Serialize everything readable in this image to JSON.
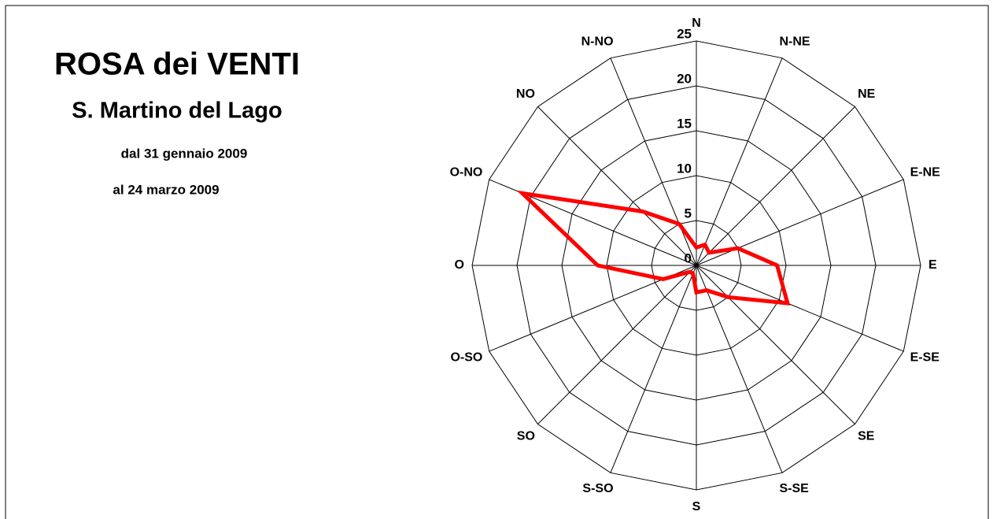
{
  "chart_data": {
    "type": "radar",
    "title": "ROSA dei VENTI",
    "subtitle": "S. Martino del Lago",
    "period_from": "dal 31 gennaio 2009",
    "period_to": "al 24 marzo 2009",
    "categories": [
      "N",
      "N-NE",
      "NE",
      "E-NE",
      "E",
      "E-SE",
      "SE",
      "S-SE",
      "S",
      "S-SO",
      "SO",
      "O-SO",
      "O",
      "O-NO",
      "NO",
      "N-NO"
    ],
    "values": [
      2,
      2.5,
      2,
      5,
      9,
      11,
      5,
      3,
      3,
      1,
      1,
      4,
      11,
      21,
      8.5,
      5
    ],
    "color": "#ff0000",
    "rlim": [
      0,
      25
    ],
    "rticks": [
      0,
      5,
      10,
      15,
      20,
      25
    ]
  }
}
